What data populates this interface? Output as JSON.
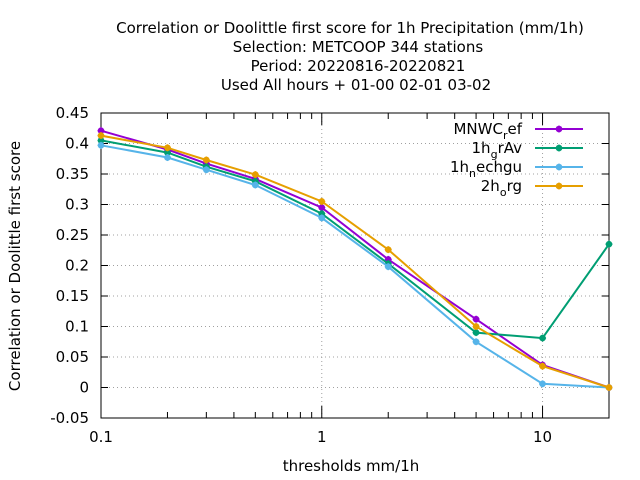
{
  "chart_data": {
    "type": "line",
    "title_lines": [
      "Correlation or Doolittle first score  for 1h Precipitation (mm/1h)",
      "Selection: METCOOP    344 stations",
      "Period: 20220816-20220821",
      "Used  All hours  + 01-00 02-01 03-02"
    ],
    "xlabel": "thresholds mm/1h",
    "ylabel": "Correlation or Doolittle first score",
    "x_scale": "log",
    "xlim": [
      0.1,
      20
    ],
    "ylim": [
      -0.05,
      0.45
    ],
    "x_ticks": [
      0.1,
      1,
      10
    ],
    "x_tick_labels": [
      "0.1",
      "1",
      "10"
    ],
    "y_ticks": [
      -0.05,
      0,
      0.05,
      0.1,
      0.15,
      0.2,
      0.25,
      0.3,
      0.35,
      0.4,
      0.45
    ],
    "y_tick_labels": [
      "-0.05",
      "0",
      "0.05",
      "0.1",
      "0.15",
      "0.2",
      "0.25",
      "0.3",
      "0.35",
      "0.4",
      "0.45"
    ],
    "grid": true,
    "legend_position": "top-right",
    "x": [
      0.1,
      0.2,
      0.3,
      0.5,
      1,
      2,
      5,
      10,
      20
    ],
    "series": [
      {
        "name": "MNWC_ref",
        "legend_parts": [
          {
            "t": "MNWC",
            "sub": false
          },
          {
            "t": "r",
            "sub": true
          },
          {
            "t": "ef",
            "sub": false
          }
        ],
        "color": "#9400d3",
        "values": [
          0.421,
          0.39,
          0.367,
          0.342,
          0.295,
          0.21,
          0.112,
          0.037,
          0.0
        ]
      },
      {
        "name": "1h_grAv",
        "legend_parts": [
          {
            "t": "1h",
            "sub": false
          },
          {
            "t": "g",
            "sub": true
          },
          {
            "t": "rAv",
            "sub": false
          }
        ],
        "color": "#009e73",
        "values": [
          0.405,
          0.385,
          0.362,
          0.338,
          0.285,
          0.203,
          0.09,
          0.081,
          0.235
        ]
      },
      {
        "name": "1h_nechgu",
        "legend_parts": [
          {
            "t": "1h",
            "sub": false
          },
          {
            "t": "n",
            "sub": true
          },
          {
            "t": "echgu",
            "sub": false
          }
        ],
        "color": "#56b4e9",
        "values": [
          0.397,
          0.377,
          0.357,
          0.332,
          0.278,
          0.198,
          0.075,
          0.006,
          0.0
        ]
      },
      {
        "name": "2h_org",
        "legend_parts": [
          {
            "t": "2h",
            "sub": false
          },
          {
            "t": "o",
            "sub": true
          },
          {
            "t": "rg",
            "sub": false
          }
        ],
        "color": "#e69f00",
        "values": [
          0.413,
          0.393,
          0.373,
          0.349,
          0.305,
          0.226,
          0.1,
          0.035,
          0.0
        ]
      }
    ]
  }
}
